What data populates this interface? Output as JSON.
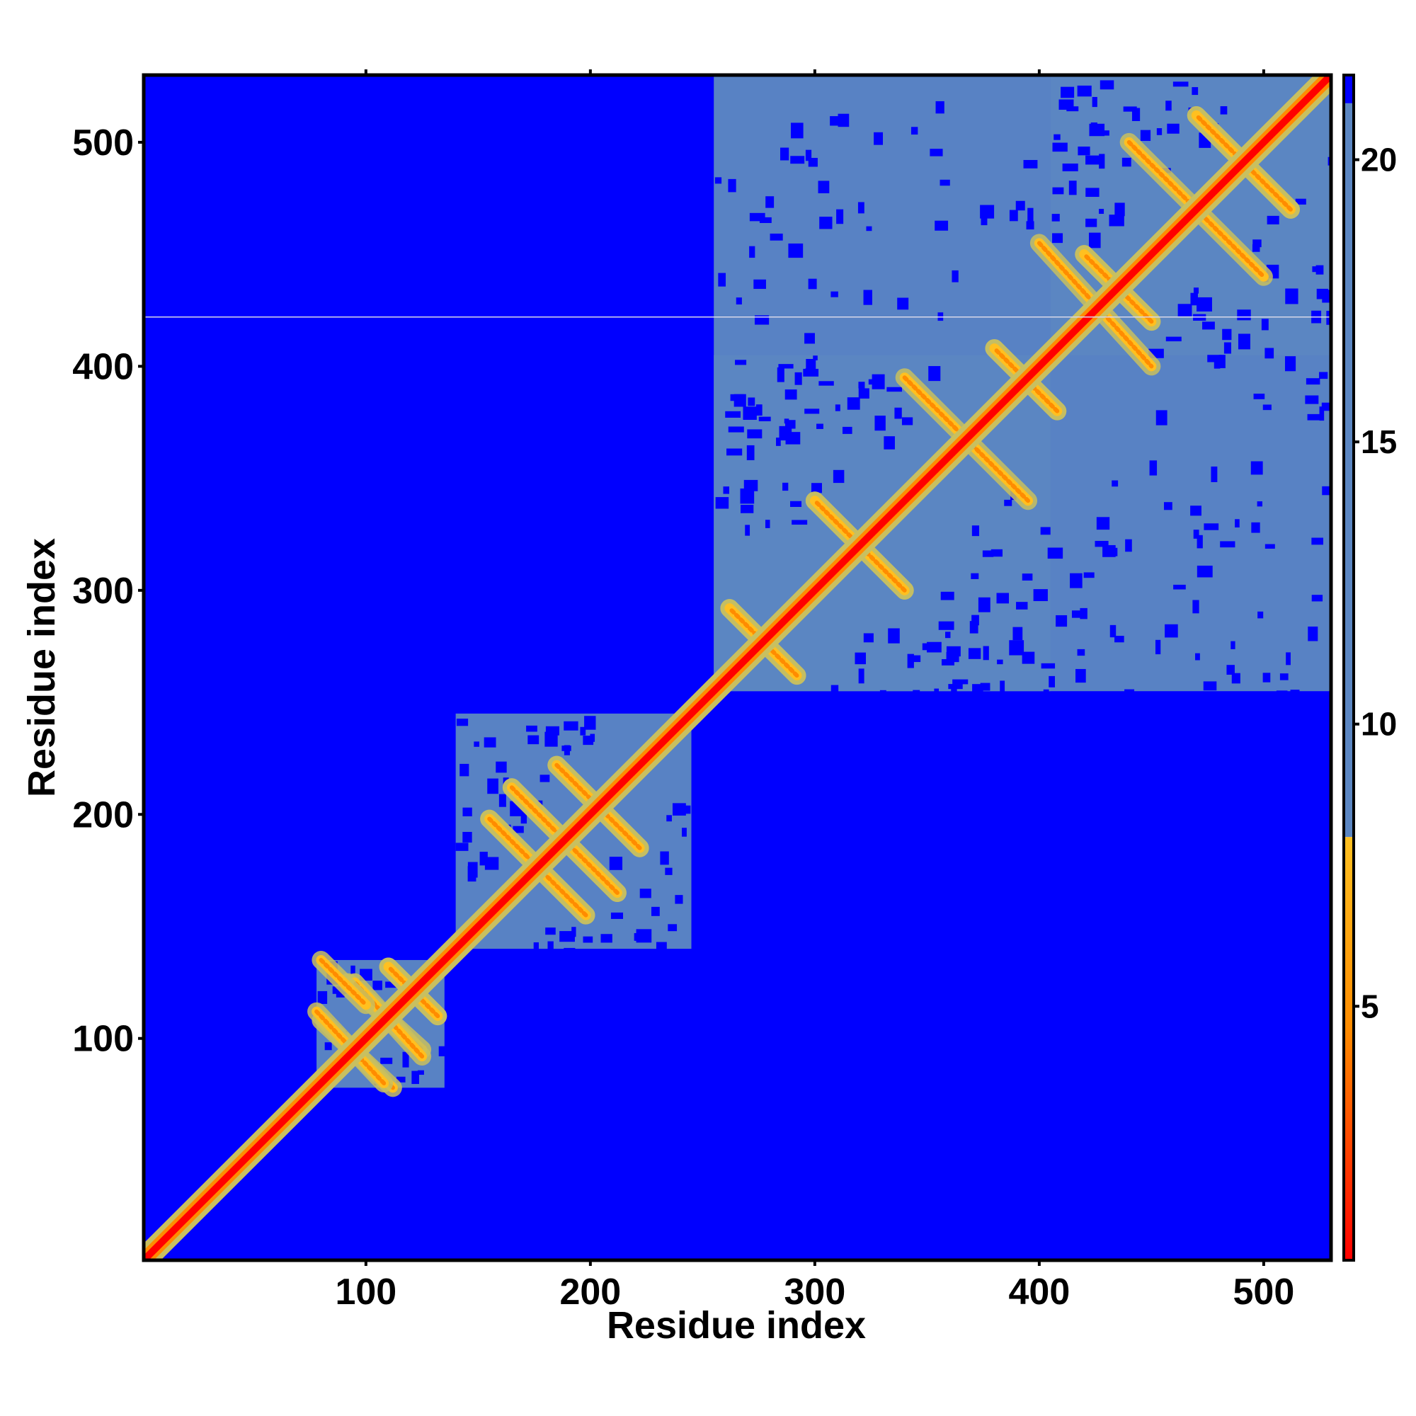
{
  "chart_data": {
    "type": "heatmap",
    "title": "",
    "xlabel": "Residue index",
    "ylabel": "Residue index",
    "xlim": [
      1,
      530
    ],
    "ylim": [
      1,
      530
    ],
    "x_ticks": [
      100,
      200,
      300,
      400,
      500
    ],
    "y_ticks": [
      100,
      200,
      300,
      400,
      500
    ],
    "colorbar": {
      "range": [
        0.5,
        21.5
      ],
      "ticks": [
        5,
        10,
        15,
        20
      ],
      "colors": {
        "low": "#ff0000",
        "mid_low": "#ff8c00",
        "mid": "#ffc020",
        "contact_edge": "#c8c060",
        "far": "#5b86c2",
        "max": "#0000ff"
      },
      "threshold_value": 8
    },
    "background_value": 21,
    "domains": [
      {
        "start": 78,
        "end": 135,
        "level": 15
      },
      {
        "start": 140,
        "end": 245,
        "level": 15
      },
      {
        "start": 255,
        "end": 405,
        "level": 15
      },
      {
        "start": 255,
        "end": 530,
        "level": 16
      },
      {
        "start": 405,
        "end": 530,
        "level": 15
      }
    ],
    "anti_diagonal_contacts": [
      {
        "x1": 80,
        "y1": 108,
        "x2": 112,
        "y2": 78
      },
      {
        "x1": 92,
        "y1": 125,
        "x2": 125,
        "y2": 95
      },
      {
        "x1": 110,
        "y1": 132,
        "x2": 132,
        "y2": 110
      },
      {
        "x1": 155,
        "y1": 198,
        "x2": 198,
        "y2": 155
      },
      {
        "x1": 165,
        "y1": 212,
        "x2": 212,
        "y2": 165
      },
      {
        "x1": 185,
        "y1": 222,
        "x2": 222,
        "y2": 185
      },
      {
        "x1": 262,
        "y1": 292,
        "x2": 292,
        "y2": 262
      },
      {
        "x1": 300,
        "y1": 340,
        "x2": 340,
        "y2": 300
      },
      {
        "x1": 380,
        "y1": 408,
        "x2": 408,
        "y2": 380
      },
      {
        "x1": 470,
        "y1": 512,
        "x2": 512,
        "y2": 470
      },
      {
        "x1": 420,
        "y1": 450,
        "x2": 450,
        "y2": 420
      }
    ],
    "parallel_contacts": [
      {
        "x1": 80,
        "y1": 135,
        "x2": 100,
        "y2": 115
      },
      {
        "x1": 340,
        "y1": 395,
        "x2": 395,
        "y2": 340
      },
      {
        "x1": 400,
        "y1": 455,
        "x2": 450,
        "y2": 400
      },
      {
        "x1": 440,
        "y1": 500,
        "x2": 500,
        "y2": 440
      }
    ],
    "artifact_line_y": 422,
    "grid": false,
    "legend": "colorbar-right"
  }
}
